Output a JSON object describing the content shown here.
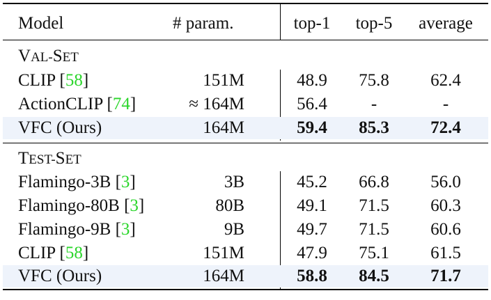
{
  "header": {
    "model": "Model",
    "param": "# param.",
    "top1": "top-1",
    "top5": "top-5",
    "avg": "average"
  },
  "sections": [
    {
      "title_cap": "V",
      "title_rest": "AL-",
      "title_cap2": "S",
      "title_rest2": "ET",
      "rows": [
        {
          "name": "CLIP",
          "cite": "58",
          "param": "151M",
          "top1": "48.9",
          "top5": "75.8",
          "avg": "62.4",
          "highlight": false
        },
        {
          "name": "ActionCLIP",
          "cite": "74",
          "param": "≈ 164M",
          "top1": "56.4",
          "top5": "-",
          "avg": "-",
          "highlight": false
        },
        {
          "name": "VFC (Ours)",
          "cite": "",
          "param": "164M",
          "top1": "59.4",
          "top5": "85.3",
          "avg": "72.4",
          "highlight": true
        }
      ]
    },
    {
      "title_cap": "T",
      "title_rest": "EST-",
      "title_cap2": "S",
      "title_rest2": "ET",
      "rows": [
        {
          "name": "Flamingo-3B",
          "cite": "3",
          "param": "3B",
          "top1": "45.2",
          "top5": "66.8",
          "avg": "56.0",
          "highlight": false
        },
        {
          "name": "Flamingo-80B",
          "cite": "3",
          "param": "80B",
          "top1": "49.1",
          "top5": "71.5",
          "avg": "60.3",
          "highlight": false
        },
        {
          "name": "Flamingo-9B",
          "cite": "3",
          "param": "9B",
          "top1": "49.7",
          "top5": "71.5",
          "avg": "60.6",
          "highlight": false
        },
        {
          "name": "CLIP",
          "cite": "58",
          "param": "151M",
          "top1": "47.9",
          "top5": "75.1",
          "avg": "61.5",
          "highlight": false
        },
        {
          "name": "VFC (Ours)",
          "cite": "",
          "param": "164M",
          "top1": "58.8",
          "top5": "84.5",
          "avg": "71.7",
          "highlight": true
        }
      ]
    }
  ]
}
